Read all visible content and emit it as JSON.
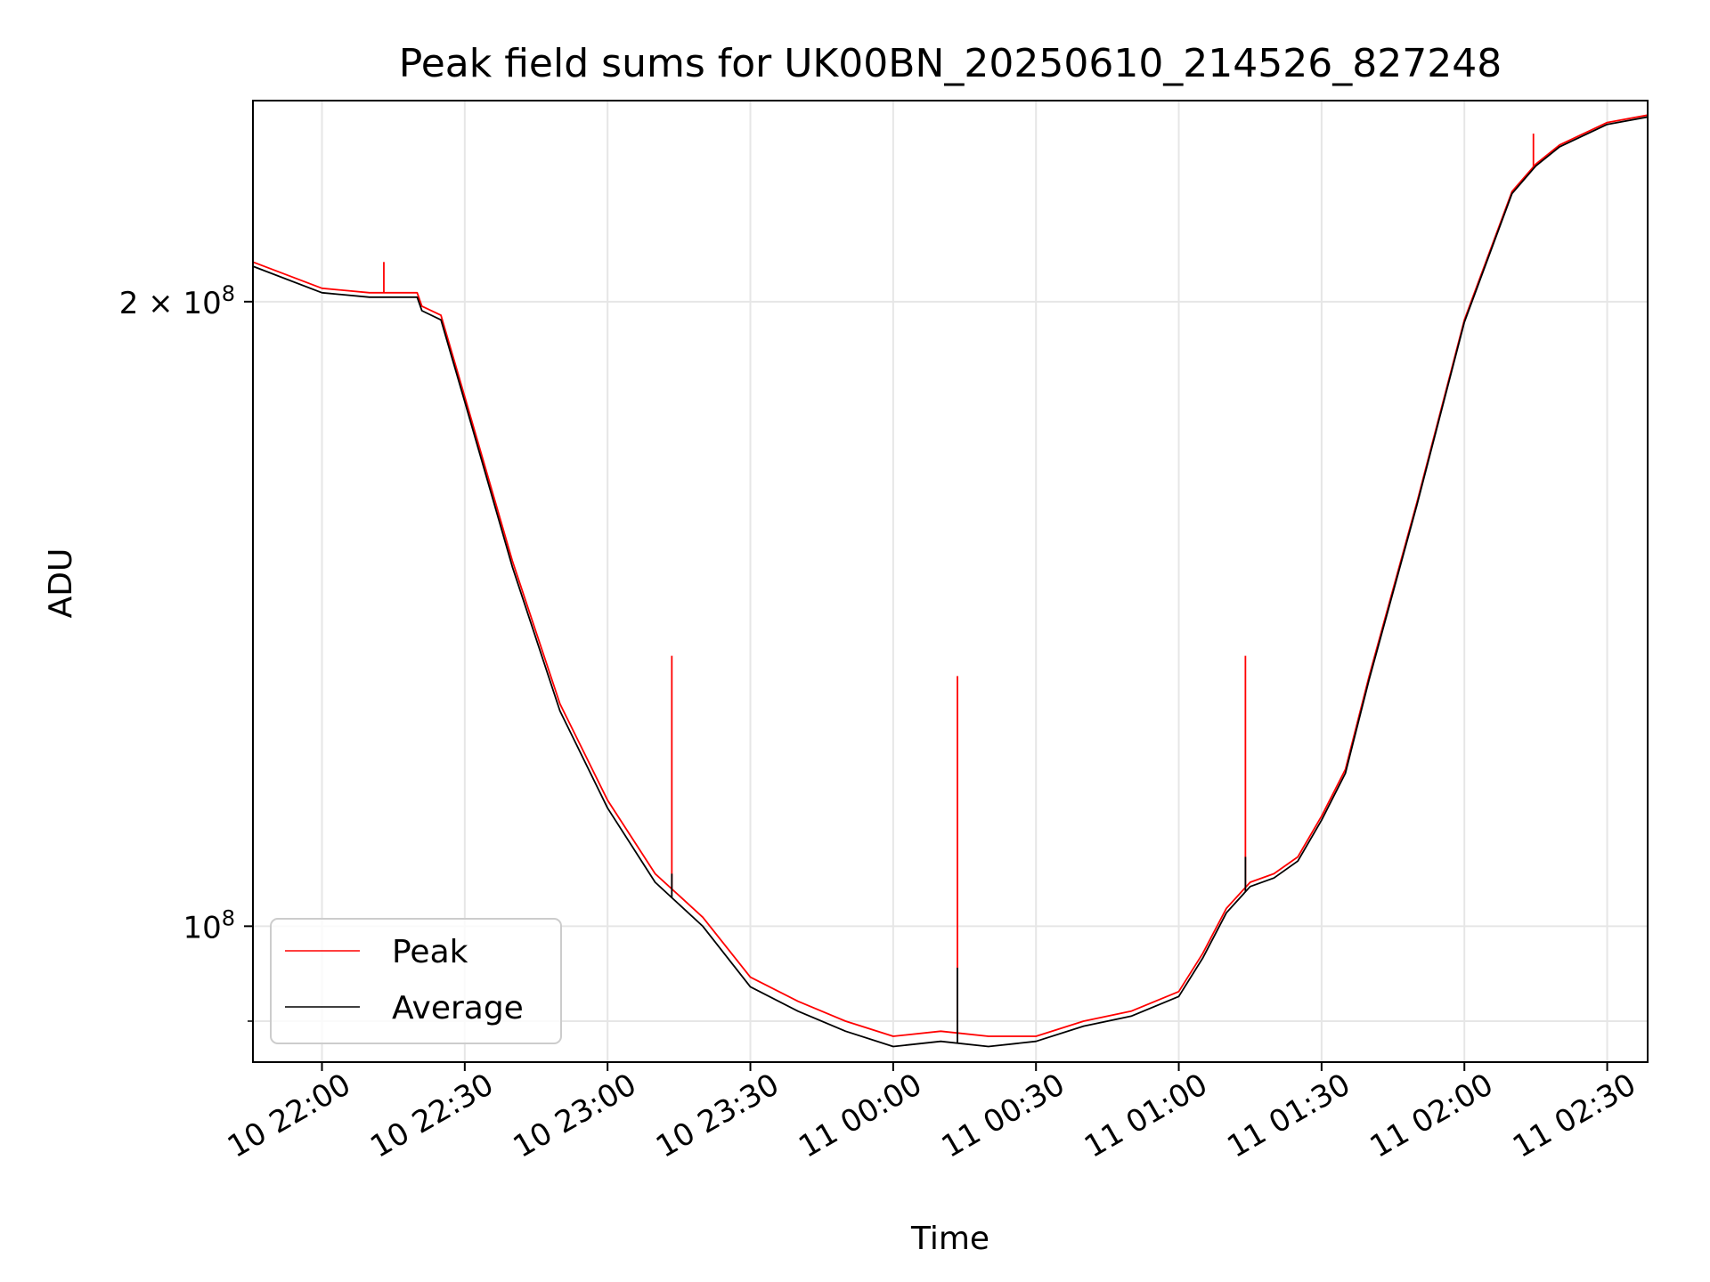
{
  "chart_data": {
    "type": "line",
    "title": "Peak field sums for UK00BN_20250610_214526_827248",
    "xlabel": "Time",
    "ylabel": "ADU",
    "yscale": "log",
    "xlim": [
      "2025-06-10T21:45:30",
      "2025-06-11T02:38:30"
    ],
    "ylim": [
      86000000,
      250000000
    ],
    "grid": true,
    "legend": {
      "position": "lower-left",
      "entries": [
        "Peak",
        "Average"
      ]
    },
    "x_ticks": [
      "10 22:00",
      "10 22:30",
      "10 23:00",
      "10 23:30",
      "11 00:00",
      "11 00:30",
      "11 01:00",
      "11 01:30",
      "11 02:00",
      "11 02:30"
    ],
    "x_tick_times": [
      "2025-06-10T22:00:00",
      "2025-06-10T22:30:00",
      "2025-06-10T23:00:00",
      "2025-06-10T23:30:00",
      "2025-06-11T00:00:00",
      "2025-06-11T00:30:00",
      "2025-06-11T01:00:00",
      "2025-06-11T01:30:00",
      "2025-06-11T02:00:00",
      "2025-06-11T02:30:00"
    ],
    "y_ticks": [
      {
        "value": 200000000,
        "base": "2 × 10",
        "exp": "8"
      },
      {
        "value": 100000000,
        "base": "10",
        "exp": "8"
      }
    ],
    "y_minor_ticks": [
      90000000
    ],
    "x": [
      "2025-06-10T21:45:30",
      "2025-06-10T22:00:00",
      "2025-06-10T22:10:00",
      "2025-06-10T22:20:00",
      "2025-06-10T22:21:00",
      "2025-06-10T22:25:00",
      "2025-06-10T22:30:00",
      "2025-06-10T22:40:00",
      "2025-06-10T22:50:00",
      "2025-06-10T23:00:00",
      "2025-06-10T23:10:00",
      "2025-06-10T23:20:00",
      "2025-06-10T23:30:00",
      "2025-06-10T23:40:00",
      "2025-06-10T23:50:00",
      "2025-06-11T00:00:00",
      "2025-06-11T00:10:00",
      "2025-06-11T00:20:00",
      "2025-06-11T00:30:00",
      "2025-06-11T00:40:00",
      "2025-06-11T00:50:00",
      "2025-06-11T01:00:00",
      "2025-06-11T01:05:00",
      "2025-06-11T01:10:00",
      "2025-06-11T01:15:00",
      "2025-06-11T01:20:00",
      "2025-06-11T01:25:00",
      "2025-06-11T01:30:00",
      "2025-06-11T01:35:00",
      "2025-06-11T01:40:00",
      "2025-06-11T01:50:00",
      "2025-06-11T02:00:00",
      "2025-06-11T02:10:00",
      "2025-06-11T02:15:00",
      "2025-06-11T02:20:00",
      "2025-06-11T02:30:00",
      "2025-06-11T02:38:30"
    ],
    "series": [
      {
        "name": "Peak",
        "color": "#ff0000",
        "values": [
          209000000,
          203000000,
          202000000,
          202000000,
          199000000,
          197000000,
          180000000,
          150000000,
          128000000,
          115000000,
          106000000,
          101000000,
          94500000,
          92000000,
          90000000,
          88500000,
          89000000,
          88500000,
          88500000,
          90000000,
          91000000,
          93000000,
          97000000,
          102000000,
          105000000,
          106000000,
          108000000,
          113000000,
          119000000,
          132000000,
          160000000,
          196000000,
          226000000,
          233000000,
          238000000,
          244000000,
          246000000
        ],
        "spikes": [
          {
            "x": "2025-06-10T22:13:00",
            "y": 209000000
          },
          {
            "x": "2025-06-10T23:13:30",
            "y": 135000000
          },
          {
            "x": "2025-06-11T00:13:30",
            "y": 132000000
          },
          {
            "x": "2025-06-11T01:14:00",
            "y": 135000000
          },
          {
            "x": "2025-06-11T02:14:30",
            "y": 241000000
          }
        ]
      },
      {
        "name": "Average",
        "color": "#000000",
        "values": [
          208000000,
          202000000,
          201000000,
          201000000,
          198000000,
          196000000,
          179000000,
          149000000,
          127000000,
          114000000,
          105000000,
          100000000,
          93500000,
          91000000,
          89000000,
          87500000,
          88000000,
          87500000,
          88000000,
          89500000,
          90500000,
          92500000,
          96500000,
          101500000,
          104500000,
          105500000,
          107500000,
          112500000,
          118500000,
          131500000,
          159500000,
          195500000,
          225500000,
          232500000,
          237500000,
          243500000,
          245500000
        ],
        "spikes": [
          {
            "x": "2025-06-10T23:13:30",
            "y": 106000000
          },
          {
            "x": "2025-06-11T00:13:30",
            "y": 95500000
          },
          {
            "x": "2025-06-11T01:14:00",
            "y": 108000000
          }
        ]
      }
    ]
  }
}
